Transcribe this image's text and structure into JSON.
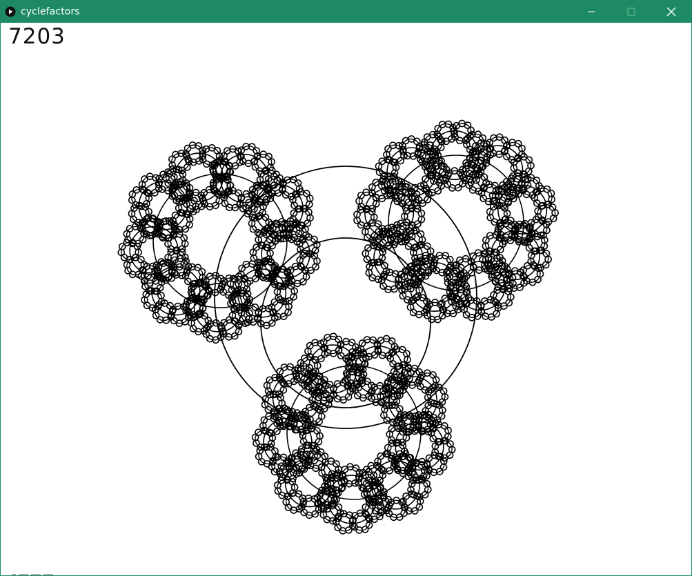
{
  "window": {
    "title": "cyclefactors",
    "accent_color": "#1e8a63",
    "icons": {
      "app": "processing-play-icon",
      "minimize": "minimize-icon",
      "maximize": "maximize-icon-disabled",
      "close": "close-icon"
    }
  },
  "sketch": {
    "frame_count": "7203",
    "stroke_color": "#000000",
    "background_color": "#ffffff",
    "figure": "three rotating flower clusters of nested circle rings around a central pair of circles"
  }
}
